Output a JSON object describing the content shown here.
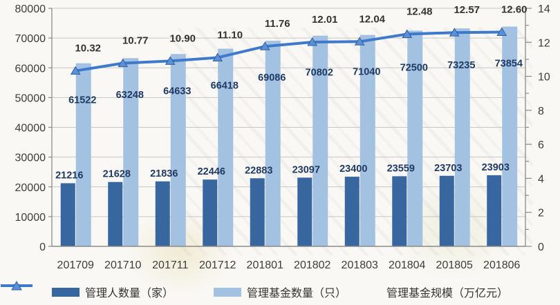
{
  "chart_data": {
    "type": "bar",
    "subtype": "grouped-bar-with-line-combo",
    "categories": [
      "201709",
      "201710",
      "201711",
      "201712",
      "201801",
      "201802",
      "201803",
      "201804",
      "201805",
      "201806"
    ],
    "series": [
      {
        "id": "manager-count",
        "name": "管理人数量（家）",
        "type": "bar",
        "axis": "left",
        "color": "#38669E",
        "values": [
          21216,
          21628,
          21836,
          22446,
          22883,
          23097,
          23400,
          23559,
          23703,
          23903
        ],
        "labels": [
          "21216",
          "21628",
          "21836",
          "22446",
          "22883",
          "23097",
          "23400",
          "23559",
          "23703",
          "23903"
        ]
      },
      {
        "id": "fund-count",
        "name": "管理基金数量（只）",
        "type": "bar",
        "axis": "left",
        "color": "#A3C1E0",
        "values": [
          61522,
          63248,
          64633,
          66418,
          69086,
          70802,
          71040,
          72500,
          73235,
          73854
        ],
        "labels": [
          "61522",
          "63248",
          "64633",
          "66418",
          "69086",
          "70802",
          "71040",
          "72500",
          "73235",
          "73854"
        ]
      },
      {
        "id": "fund-scale",
        "name": "管理基金规模（万亿元）",
        "type": "line",
        "axis": "right",
        "color": "#3E79CC",
        "marker": "triangle-up",
        "values": [
          10.32,
          10.77,
          10.9,
          11.1,
          11.76,
          12.01,
          12.04,
          12.48,
          12.57,
          12.6
        ],
        "labels": [
          "10.32",
          "10.77",
          "10.90",
          "11.10",
          "11.76",
          "12.01",
          "12.04",
          "12.48",
          "12.57",
          "12.60"
        ]
      }
    ],
    "left_axis": {
      "min": 0,
      "max": 80000,
      "step": 10000,
      "ticks": [
        "0",
        "10000",
        "20000",
        "30000",
        "40000",
        "50000",
        "60000",
        "70000",
        "80000"
      ]
    },
    "right_axis": {
      "min": 0,
      "max": 14,
      "step": 2,
      "minor_step": 1,
      "ticks": [
        "0",
        "2",
        "4",
        "6",
        "8",
        "10",
        "12",
        "14"
      ]
    },
    "grid": true,
    "legend_position": "bottom",
    "title": ""
  },
  "colors": {
    "background": "#faf8f5",
    "gridline": "#c8c6c2",
    "axis_line": "#8a8a8a",
    "axis_text": "#3c3c3c",
    "bar_label_text": "#1f3a63",
    "line_label_text": "#333333",
    "marker_fill": "#5b90d6",
    "marker_stroke": "#2e5fa3"
  }
}
